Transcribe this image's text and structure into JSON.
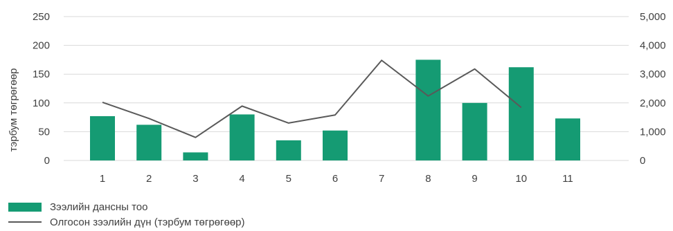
{
  "chart_data": {
    "type": "bar",
    "categories": [
      "1",
      "2",
      "3",
      "4",
      "5",
      "6",
      "7",
      "8",
      "9",
      "10",
      "11"
    ],
    "series": [
      {
        "name": "Зээлийн дансны тоо",
        "type": "bar",
        "axis": "left",
        "color": "#159b73",
        "values": [
          77,
          62,
          14,
          80,
          35,
          52,
          175,
          100,
          162,
          73,
          null
        ]
      },
      {
        "name": "Олгосон зээлийн дүн (тэрбум төгрөгөөр)",
        "type": "line",
        "axis": "right",
        "color": "#595959",
        "values": [
          2020,
          1460,
          800,
          1890,
          1300,
          1580,
          3480,
          2240,
          3180,
          1840,
          null
        ]
      }
    ],
    "bar_positions": [
      1,
      2,
      3,
      4,
      5,
      6,
      8,
      9,
      10,
      11
    ],
    "ylabel": "тэрбум төгрөгөөр",
    "ylim": [
      0,
      250
    ],
    "y2lim": [
      0,
      5000
    ],
    "yticks": [
      "0",
      "50",
      "100",
      "150",
      "200",
      "250"
    ],
    "y2ticks": [
      "0",
      "1,000",
      "2,000",
      "3,000",
      "4,000",
      "5,000"
    ],
    "grid": true,
    "legend_position": "bottom-left"
  }
}
